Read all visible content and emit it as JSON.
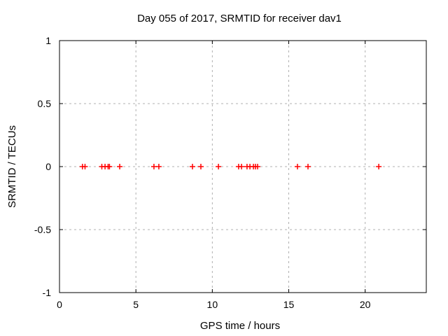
{
  "chart_data": {
    "type": "scatter",
    "title": "Day 055 of 2017, SRMTID for receiver dav1",
    "xlabel": "GPS time / hours",
    "ylabel": "SRMTID / TECUs",
    "xlim": [
      0,
      24
    ],
    "ylim": [
      -1,
      1
    ],
    "grid": true,
    "legend": "none",
    "xticks": {
      "values": [
        0,
        5,
        10,
        15,
        20
      ],
      "labels": [
        "0",
        "5",
        "10",
        "15",
        "20"
      ]
    },
    "yticks": {
      "values": [
        -1,
        -0.5,
        0,
        0.5,
        1
      ],
      "labels": [
        "-1",
        "-0.5",
        "0",
        "0.5",
        "1"
      ]
    },
    "colors": {
      "marker": "#ff0000",
      "grid": "#b0b0b0",
      "axis": "#000000",
      "background": "#ffffff"
    },
    "series": [
      {
        "name": "SRMTID",
        "marker": "plus",
        "color": "#ff0000",
        "x": [
          1.5,
          1.67,
          2.77,
          2.98,
          3.18,
          3.27,
          3.94,
          6.18,
          6.5,
          8.7,
          9.25,
          10.4,
          11.72,
          11.91,
          12.27,
          12.46,
          12.69,
          12.82,
          12.96,
          15.57,
          16.26,
          20.89
        ],
        "y": [
          0,
          0,
          0,
          0,
          0,
          0,
          0,
          0,
          0,
          0,
          0,
          0,
          0,
          0,
          0,
          0,
          0,
          0,
          0,
          0,
          0,
          0
        ]
      }
    ]
  }
}
